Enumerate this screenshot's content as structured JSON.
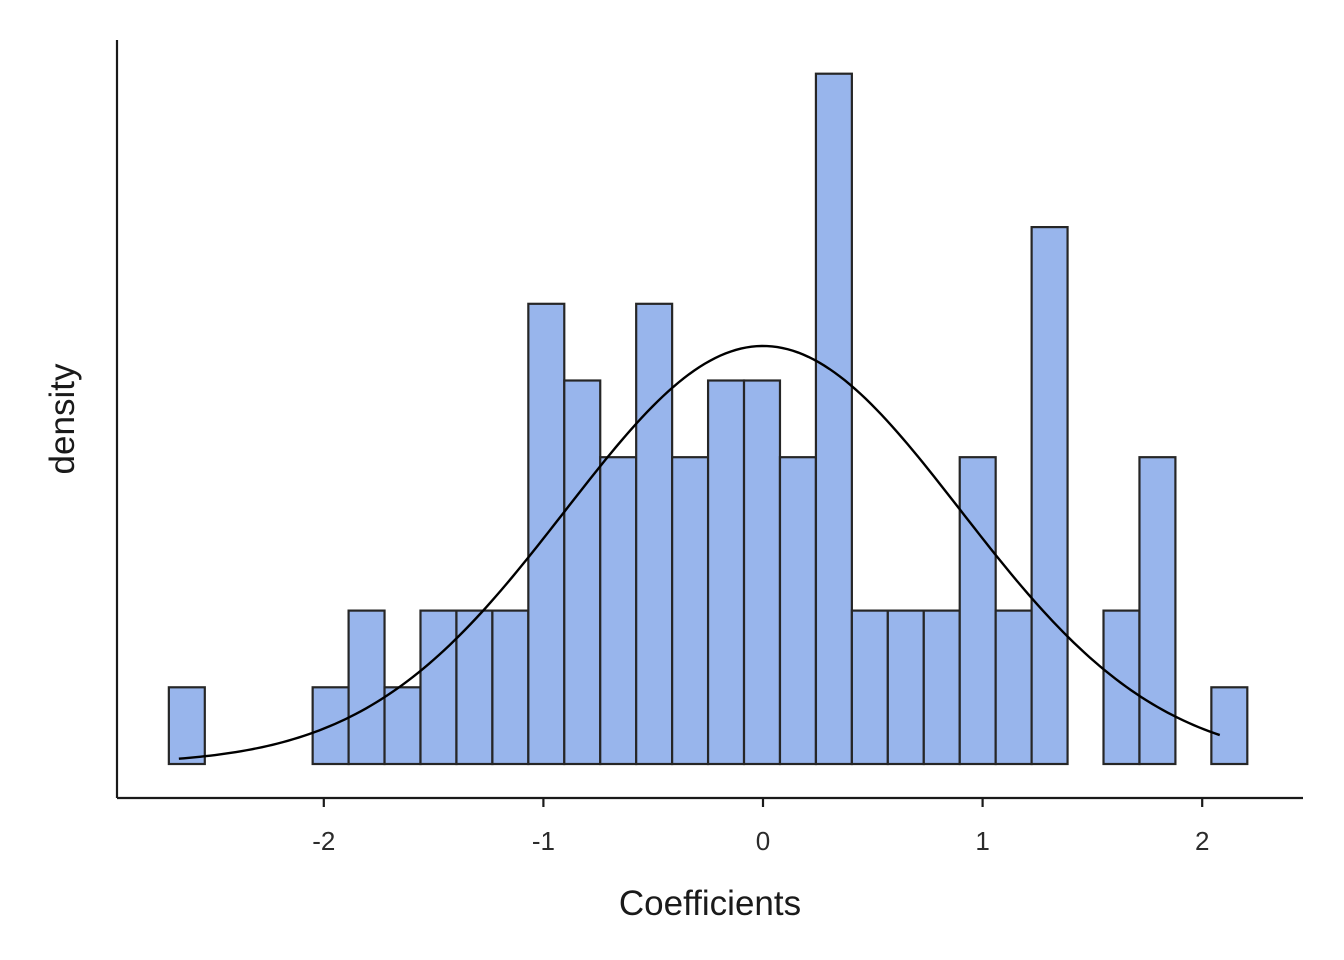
{
  "chart_data": {
    "type": "bar",
    "subtype": "histogram with normal density overlay",
    "title": "",
    "xlabel": "Coefficients",
    "ylabel": "density",
    "xlim": [
      -2.86,
      2.5
    ],
    "ylim": [
      0,
      9.5
    ],
    "x_ticks": [
      -2,
      -1,
      0,
      1,
      2
    ],
    "y_ticks": [],
    "grid": false,
    "legend": "none",
    "bar_fill": "#98b5ec",
    "bar_outline": "#262626",
    "curve_color": "#000000",
    "bin_width": 0.1637,
    "bin_start": -2.7056,
    "bins_x_center": [
      -2.624,
      -2.46,
      -2.296,
      -2.133,
      -1.969,
      -1.805,
      -1.642,
      -1.478,
      -1.314,
      -1.151,
      -0.987,
      -0.823,
      -0.659,
      -0.496,
      -0.332,
      -0.168,
      -0.005,
      0.159,
      0.323,
      0.487,
      0.65,
      0.814,
      0.978,
      1.141,
      1.305,
      1.469,
      1.632,
      1.796,
      1.96,
      2.123
    ],
    "counts": [
      1,
      0,
      0,
      0,
      1,
      2,
      1,
      2,
      2,
      2,
      6,
      5,
      4,
      6,
      4,
      5,
      5,
      4,
      9,
      2,
      2,
      2,
      4,
      2,
      7,
      0,
      2,
      4,
      0,
      1
    ],
    "normal_fit": {
      "mean": 0.0,
      "sd": 0.9,
      "x_range": [
        -2.66,
        2.08
      ],
      "peak_count_scale": 5.45
    }
  }
}
